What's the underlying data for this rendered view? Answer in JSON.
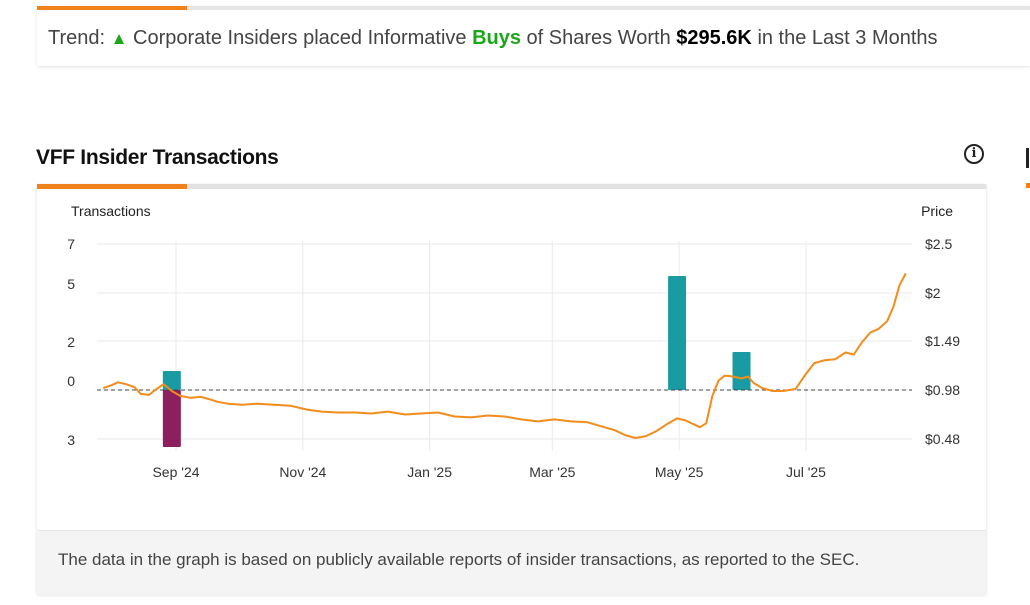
{
  "trend": {
    "prefix": "Trend:",
    "arrow": "▲",
    "text1": "Corporate Insiders placed Informative",
    "buys": "Buys",
    "text2": "of Shares Worth",
    "worth": "$295.6K",
    "text3": "in the Last 3 Months"
  },
  "section": {
    "title": "VFF Insider Transactions",
    "info_icon": "info-icon"
  },
  "footer": {
    "text": "The data in the graph is based on publicly available reports of insider transactions, as reported to the SEC."
  },
  "colors": {
    "accent": "#f0821e",
    "buy_bar": "#1a9ba3",
    "sell_bar": "#8e1f5e",
    "price_line": "#f28c1c",
    "buys_text": "#1aa71a"
  },
  "chart_data": {
    "type": "bar+line",
    "left_axis_title": "Transactions",
    "right_axis_title": "Price",
    "left_ticks": [
      {
        "label": "7",
        "value": 7
      },
      {
        "label": "5",
        "value": 5
      },
      {
        "label": "2",
        "value": 2
      },
      {
        "label": "0",
        "value": 0
      },
      {
        "label": "3",
        "value": -3
      }
    ],
    "right_ticks": [
      "$2.5",
      "$2",
      "$1.49",
      "$0.98",
      "$0.48"
    ],
    "right_tick_values": [
      2.5,
      2.0,
      1.49,
      0.98,
      0.48
    ],
    "x_ticks": [
      {
        "label": "Sep '24",
        "date": "2024-09-01"
      },
      {
        "label": "Nov '24",
        "date": "2024-11-01"
      },
      {
        "label": "Jan '25",
        "date": "2025-01-01"
      },
      {
        "label": "Mar '25",
        "date": "2025-03-01"
      },
      {
        "label": "May '25",
        "date": "2025-05-01"
      },
      {
        "label": "Jul '25",
        "date": "2025-07-01"
      }
    ],
    "x_range": [
      "2024-07-25",
      "2025-08-21"
    ],
    "baseline_price": 0.98,
    "transactions": [
      {
        "date": "2024-08-30",
        "type": "buy",
        "count": 1
      },
      {
        "date": "2024-08-30",
        "type": "sell",
        "count": -3
      },
      {
        "date": "2025-04-30",
        "type": "buy",
        "count": 6
      },
      {
        "date": "2025-05-31",
        "type": "buy",
        "count": 2
      }
    ],
    "price_series": [
      [
        "2024-07-28",
        1.0
      ],
      [
        "2024-08-01",
        1.03
      ],
      [
        "2024-08-04",
        1.06
      ],
      [
        "2024-08-08",
        1.04
      ],
      [
        "2024-08-12",
        1.01
      ],
      [
        "2024-08-15",
        0.94
      ],
      [
        "2024-08-19",
        0.93
      ],
      [
        "2024-08-22",
        0.98
      ],
      [
        "2024-08-26",
        1.04
      ],
      [
        "2024-08-30",
        0.97
      ],
      [
        "2024-09-03",
        0.92
      ],
      [
        "2024-09-08",
        0.9
      ],
      [
        "2024-09-13",
        0.91
      ],
      [
        "2024-09-18",
        0.88
      ],
      [
        "2024-09-21",
        0.86
      ],
      [
        "2024-09-26",
        0.84
      ],
      [
        "2024-10-03",
        0.83
      ],
      [
        "2024-10-10",
        0.84
      ],
      [
        "2024-10-18",
        0.83
      ],
      [
        "2024-10-26",
        0.82
      ],
      [
        "2024-11-03",
        0.78
      ],
      [
        "2024-11-10",
        0.76
      ],
      [
        "2024-11-18",
        0.75
      ],
      [
        "2024-11-26",
        0.75
      ],
      [
        "2024-12-04",
        0.74
      ],
      [
        "2024-12-12",
        0.76
      ],
      [
        "2024-12-20",
        0.73
      ],
      [
        "2024-12-28",
        0.74
      ],
      [
        "2025-01-05",
        0.75
      ],
      [
        "2025-01-13",
        0.71
      ],
      [
        "2025-01-21",
        0.7
      ],
      [
        "2025-01-29",
        0.72
      ],
      [
        "2025-02-06",
        0.71
      ],
      [
        "2025-02-14",
        0.68
      ],
      [
        "2025-02-22",
        0.66
      ],
      [
        "2025-03-02",
        0.68
      ],
      [
        "2025-03-10",
        0.66
      ],
      [
        "2025-03-18",
        0.65
      ],
      [
        "2025-03-26",
        0.6
      ],
      [
        "2025-03-31",
        0.57
      ],
      [
        "2025-04-05",
        0.52
      ],
      [
        "2025-04-10",
        0.49
      ],
      [
        "2025-04-15",
        0.51
      ],
      [
        "2025-04-20",
        0.56
      ],
      [
        "2025-04-25",
        0.63
      ],
      [
        "2025-04-30",
        0.69
      ],
      [
        "2025-05-04",
        0.67
      ],
      [
        "2025-05-08",
        0.63
      ],
      [
        "2025-05-11",
        0.6
      ],
      [
        "2025-05-14",
        0.64
      ],
      [
        "2025-05-17",
        0.92
      ],
      [
        "2025-05-20",
        1.08
      ],
      [
        "2025-05-23",
        1.13
      ],
      [
        "2025-05-27",
        1.12
      ],
      [
        "2025-05-31",
        1.1
      ],
      [
        "2025-06-03",
        1.12
      ],
      [
        "2025-06-06",
        1.05
      ],
      [
        "2025-06-10",
        1.0
      ],
      [
        "2025-06-15",
        0.97
      ],
      [
        "2025-06-20",
        0.97
      ],
      [
        "2025-06-26",
        0.99
      ],
      [
        "2025-07-01",
        1.15
      ],
      [
        "2025-07-05",
        1.26
      ],
      [
        "2025-07-10",
        1.29
      ],
      [
        "2025-07-15",
        1.3
      ],
      [
        "2025-07-20",
        1.37
      ],
      [
        "2025-07-24",
        1.35
      ],
      [
        "2025-07-28",
        1.48
      ],
      [
        "2025-08-01",
        1.58
      ],
      [
        "2025-08-05",
        1.62
      ],
      [
        "2025-08-09",
        1.7
      ],
      [
        "2025-08-12",
        1.85
      ],
      [
        "2025-08-15",
        2.08
      ],
      [
        "2025-08-18",
        2.2
      ]
    ]
  }
}
